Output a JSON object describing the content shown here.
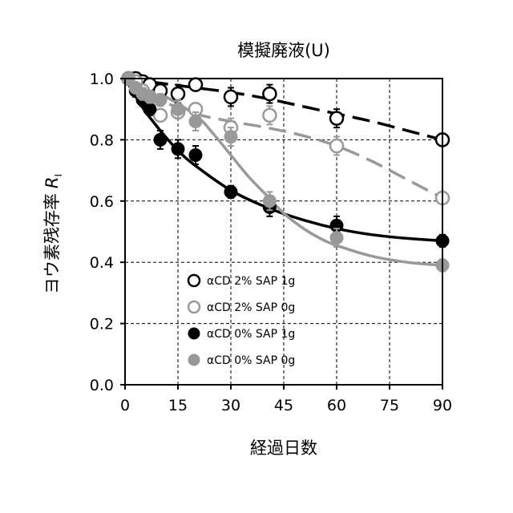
{
  "chart_data": {
    "type": "scatter",
    "title": "模擬廃液(U)",
    "xlabel": "経過日数",
    "ylabel": "ヨウ素残存率",
    "ylabel_symbol": "R",
    "ylabel_subscript": "I",
    "xlim": [
      0,
      90
    ],
    "ylim": [
      0.0,
      1.0
    ],
    "xticks": [
      0,
      15,
      30,
      45,
      60,
      75,
      90
    ],
    "yticks": [
      0.0,
      0.2,
      0.4,
      0.6,
      0.8,
      1.0
    ],
    "xtick_labels": [
      "0",
      "15",
      "30",
      "45",
      "60",
      "75",
      "90"
    ],
    "ytick_labels": [
      "0.0",
      "0.2",
      "0.4",
      "0.6",
      "0.8",
      "1.0"
    ],
    "grid": true,
    "legend_position": "lower-left",
    "series": [
      {
        "name": "αCD 2% SAP 1g",
        "marker": "open",
        "color": "#000000",
        "line": "dashed",
        "x": [
          1,
          3,
          5,
          7,
          10,
          15,
          20,
          30,
          41,
          60,
          90
        ],
        "y": [
          1.0,
          1.0,
          0.99,
          0.98,
          0.96,
          0.95,
          0.98,
          0.94,
          0.95,
          0.87,
          0.8
        ],
        "err": [
          0.01,
          0.01,
          0.01,
          0.01,
          0.02,
          0.03,
          0.02,
          0.03,
          0.03,
          0.03,
          0.02
        ],
        "fit_x": [
          0,
          10,
          20,
          30,
          40,
          50,
          60,
          70,
          80,
          90
        ],
        "fit_y": [
          1.0,
          0.985,
          0.97,
          0.955,
          0.935,
          0.91,
          0.885,
          0.86,
          0.83,
          0.8
        ]
      },
      {
        "name": "αCD 2% SAP 0g",
        "marker": "open",
        "color": "#999999",
        "line": "dashed",
        "x": [
          1,
          3,
          5,
          7,
          10,
          15,
          20,
          30,
          41,
          60,
          90
        ],
        "y": [
          1.0,
          0.99,
          0.96,
          0.94,
          0.88,
          0.89,
          0.9,
          0.84,
          0.88,
          0.78,
          0.61
        ],
        "err": [
          0.01,
          0.01,
          0.02,
          0.02,
          0.02,
          0.02,
          0.02,
          0.03,
          0.03,
          0.03,
          0.02
        ],
        "fit_x": [
          0,
          10,
          20,
          30,
          40,
          50,
          60,
          70,
          80,
          90
        ],
        "fit_y": [
          1.0,
          0.93,
          0.885,
          0.86,
          0.84,
          0.815,
          0.78,
          0.73,
          0.67,
          0.61
        ]
      },
      {
        "name": "αCD 0% SAP 1g",
        "marker": "filled",
        "color": "#000000",
        "line": "solid",
        "x": [
          1,
          3,
          5,
          7,
          10,
          15,
          20,
          30,
          41,
          60,
          90
        ],
        "y": [
          1.0,
          0.96,
          0.93,
          0.9,
          0.8,
          0.77,
          0.75,
          0.63,
          0.58,
          0.52,
          0.47
        ],
        "err": [
          0.01,
          0.02,
          0.02,
          0.02,
          0.03,
          0.03,
          0.03,
          0.02,
          0.03,
          0.03,
          0.02
        ],
        "fit_x": [
          0,
          5,
          10,
          15,
          20,
          30,
          40,
          50,
          60,
          70,
          80,
          90
        ],
        "fit_y": [
          1.0,
          0.905,
          0.83,
          0.765,
          0.715,
          0.635,
          0.58,
          0.54,
          0.51,
          0.49,
          0.478,
          0.47
        ]
      },
      {
        "name": "αCD 0% SAP 0g",
        "marker": "filled",
        "color": "#999999",
        "line": "solid",
        "x": [
          1,
          3,
          5,
          7,
          10,
          15,
          20,
          30,
          41,
          60,
          90
        ],
        "y": [
          1.0,
          0.97,
          0.95,
          0.94,
          0.93,
          0.9,
          0.86,
          0.81,
          0.6,
          0.48,
          0.39
        ],
        "err": [
          0.01,
          0.01,
          0.02,
          0.02,
          0.02,
          0.03,
          0.03,
          0.03,
          0.03,
          0.03,
          0.02
        ],
        "fit_x": [
          0,
          10,
          20,
          25,
          30,
          35,
          40,
          45,
          50,
          55,
          60,
          70,
          80,
          90
        ],
        "fit_y": [
          1.0,
          0.95,
          0.88,
          0.82,
          0.75,
          0.68,
          0.62,
          0.56,
          0.515,
          0.48,
          0.455,
          0.42,
          0.4,
          0.39
        ]
      }
    ]
  }
}
